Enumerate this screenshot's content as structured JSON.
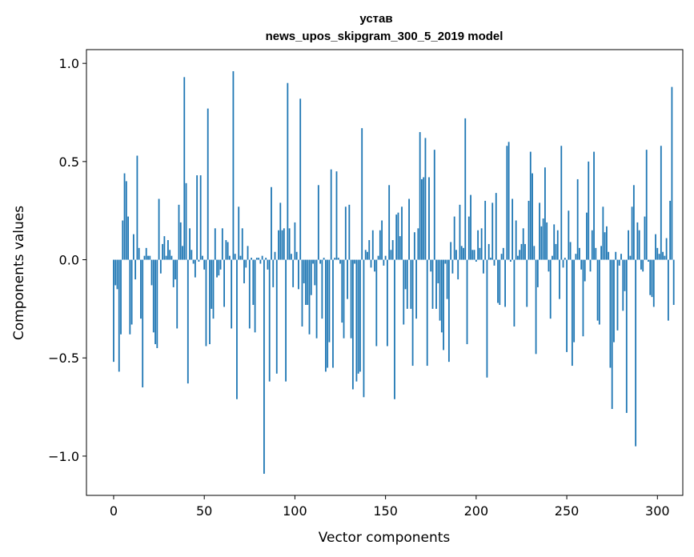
{
  "chart_data": {
    "type": "bar",
    "title_lines": [
      "устав",
      "news_upos_skipgram_300_5_2019 model"
    ],
    "xlabel": "Vector components",
    "ylabel": "Components values",
    "xlim": [
      -15,
      314
    ],
    "ylim": [
      -1.2,
      1.07
    ],
    "xticks": [
      0,
      50,
      100,
      150,
      200,
      250,
      300
    ],
    "yticks": [
      -1.0,
      -0.5,
      0.0,
      0.5,
      1.0
    ],
    "ytick_labels": [
      "−1.0",
      "−0.5",
      "0.0",
      "0.5",
      "1.0"
    ],
    "bar_color": "#1f77b4",
    "bar_width": 0.8,
    "values": [
      -0.52,
      -0.13,
      -0.15,
      -0.57,
      -0.38,
      0.2,
      0.44,
      0.4,
      0.22,
      -0.38,
      -0.33,
      0.13,
      -0.1,
      0.53,
      0.06,
      -0.3,
      -0.65,
      0.02,
      0.06,
      0.02,
      0.02,
      -0.13,
      -0.37,
      -0.43,
      -0.45,
      0.31,
      -0.07,
      0.08,
      0.12,
      0.02,
      0.1,
      0.05,
      0.02,
      -0.14,
      -0.1,
      -0.35,
      0.28,
      0.19,
      0.07,
      0.93,
      0.39,
      -0.63,
      0.16,
      0.05,
      -0.02,
      -0.09,
      0.43,
      -0.01,
      0.43,
      0.02,
      -0.05,
      -0.44,
      0.77,
      -0.43,
      -0.25,
      -0.3,
      0.16,
      -0.09,
      -0.08,
      -0.05,
      0.16,
      -0.24,
      0.1,
      0.09,
      0.02,
      -0.35,
      0.96,
      0.03,
      -0.71,
      0.27,
      0.02,
      0.16,
      -0.12,
      -0.04,
      0.07,
      -0.35,
      0.01,
      -0.23,
      -0.37,
      0.01,
      0.01,
      -0.02,
      0.02,
      -1.09,
      0.01,
      -0.05,
      -0.62,
      0.37,
      -0.14,
      0.04,
      -0.58,
      0.15,
      0.29,
      0.15,
      0.16,
      -0.62,
      0.9,
      0.16,
      0.03,
      -0.14,
      0.19,
      0.04,
      -0.15,
      0.82,
      -0.34,
      -0.12,
      -0.23,
      -0.23,
      -0.38,
      -0.18,
      -0.02,
      -0.13,
      -0.4,
      0.38,
      -0.02,
      -0.3,
      0.01,
      -0.57,
      -0.55,
      -0.42,
      0.46,
      -0.55,
      0.01,
      0.45,
      0.01,
      -0.02,
      -0.32,
      -0.4,
      0.27,
      -0.2,
      0.28,
      -0.4,
      -0.66,
      -0.02,
      -0.62,
      -0.58,
      -0.57,
      0.67,
      -0.7,
      0.05,
      0.04,
      0.1,
      -0.04,
      0.15,
      -0.06,
      -0.44,
      0.02,
      0.15,
      0.2,
      -0.03,
      0.02,
      -0.44,
      0.38,
      0.05,
      0.1,
      -0.71,
      0.23,
      0.24,
      0.12,
      0.27,
      -0.33,
      -0.15,
      -0.25,
      0.31,
      -0.25,
      -0.54,
      0.14,
      -0.3,
      0.16,
      0.65,
      0.41,
      0.42,
      0.62,
      -0.54,
      0.42,
      -0.06,
      -0.25,
      0.56,
      -0.25,
      -0.12,
      -0.31,
      -0.37,
      -0.46,
      -0.02,
      -0.2,
      -0.52,
      0.09,
      -0.07,
      0.22,
      0.05,
      -0.1,
      0.28,
      0.07,
      0.06,
      0.72,
      -0.43,
      0.22,
      0.33,
      0.05,
      0.05,
      -0.01,
      0.15,
      0.06,
      0.16,
      -0.07,
      0.3,
      -0.6,
      0.08,
      0.01,
      0.29,
      -0.03,
      0.34,
      -0.22,
      -0.23,
      0.03,
      0.06,
      -0.24,
      0.58,
      0.6,
      -0.01,
      0.31,
      -0.34,
      0.2,
      0.02,
      0.05,
      0.08,
      0.16,
      0.08,
      -0.24,
      0.3,
      0.55,
      0.44,
      0.07,
      -0.48,
      -0.14,
      0.29,
      0.17,
      0.21,
      0.47,
      0.19,
      -0.06,
      -0.3,
      0.02,
      0.18,
      0.08,
      0.15,
      -0.2,
      0.58,
      -0.04,
      0.01,
      -0.47,
      0.25,
      0.09,
      -0.54,
      -0.42,
      0.03,
      0.41,
      0.06,
      -0.05,
      -0.39,
      -0.11,
      0.24,
      0.5,
      -0.06,
      0.15,
      0.55,
      0.06,
      -0.31,
      -0.33,
      0.07,
      0.27,
      0.14,
      0.17,
      0.04,
      -0.55,
      -0.76,
      -0.42,
      0.04,
      -0.36,
      -0.03,
      0.03,
      -0.26,
      -0.16,
      -0.78,
      0.15,
      0.02,
      0.27,
      0.38,
      -0.95,
      0.19,
      0.15,
      -0.05,
      -0.06,
      0.22,
      0.56,
      -0.01,
      -0.18,
      -0.19,
      -0.24,
      0.13,
      0.06,
      0.03,
      0.58,
      0.04,
      0.02,
      0.11,
      -0.31,
      0.3,
      0.88,
      -0.23
    ]
  }
}
